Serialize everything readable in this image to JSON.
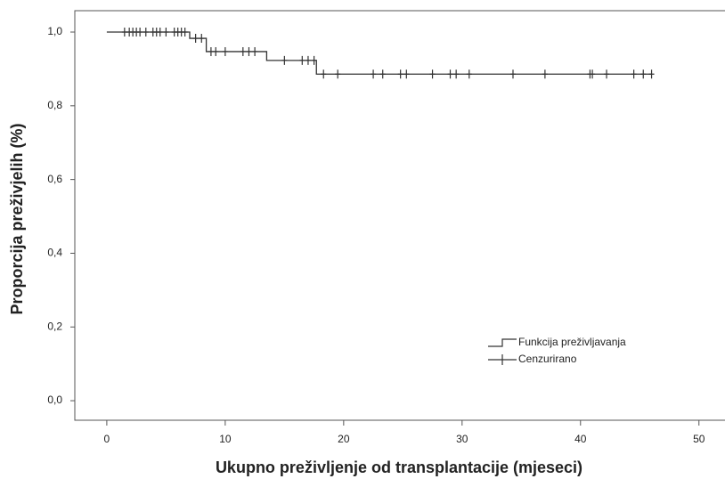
{
  "chart_data": {
    "type": "step",
    "x_label": "Ukupno preživljenje od transplantacije (mjeseci)",
    "y_label": "Proporcija preživjelih (%)",
    "series": [
      {
        "name": "Funkcija preživljavanja",
        "color": "#333333",
        "x": [
          0,
          7,
          8.4,
          13.5,
          17.7,
          46
        ],
        "values": [
          1.0,
          0.983,
          0.947,
          0.923,
          0.886,
          0.886
        ]
      },
      {
        "name": "Cenzurirano",
        "color": "#333333",
        "x": [
          1.5,
          1.9,
          2.2,
          2.5,
          2.8,
          3.3,
          3.9,
          4.2,
          4.5,
          5.0,
          5.7,
          6.0,
          6.3,
          6.6,
          7.5,
          8.0,
          8.8,
          9.2,
          10.0,
          11.5,
          12.0,
          12.5,
          15.0,
          16.5,
          17.0,
          17.5,
          18.3,
          19.5,
          22.5,
          23.3,
          24.8,
          25.3,
          27.5,
          29.0,
          29.5,
          30.6,
          34.3,
          37.0,
          40.8,
          41.0,
          42.2,
          44.5,
          45.3,
          46.0
        ],
        "values": [
          1.0,
          1.0,
          1.0,
          1.0,
          1.0,
          1.0,
          1.0,
          1.0,
          1.0,
          1.0,
          1.0,
          1.0,
          1.0,
          1.0,
          0.983,
          0.983,
          0.947,
          0.947,
          0.947,
          0.947,
          0.947,
          0.947,
          0.923,
          0.923,
          0.923,
          0.923,
          0.886,
          0.886,
          0.886,
          0.886,
          0.886,
          0.886,
          0.886,
          0.886,
          0.886,
          0.886,
          0.886,
          0.886,
          0.886,
          0.886,
          0.886,
          0.886,
          0.886,
          0.886
        ]
      }
    ],
    "xlim": [
      -2.7,
      52.2
    ],
    "ylim": [
      -0.053,
      1.058
    ],
    "xticks": [
      0,
      10,
      20,
      30,
      40,
      50
    ],
    "yticks": [
      {
        "value": 0,
        "label": "0,0"
      },
      {
        "value": 0.2,
        "label": "0,2"
      },
      {
        "value": 0.4,
        "label": "0,4"
      },
      {
        "value": 0.6,
        "label": "0,6"
      },
      {
        "value": 0.8,
        "label": "0,8"
      },
      {
        "value": 1.0,
        "label": "1,0"
      }
    ]
  }
}
